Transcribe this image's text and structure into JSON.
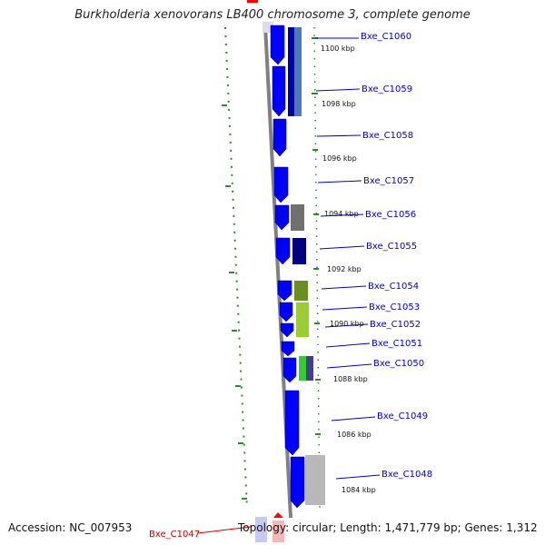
{
  "header": {
    "title": "Burkholderia xenovorans LB400 chromosome 3, complete genome"
  },
  "footer": {
    "accession": "Accession: NC_007953",
    "topology": "Topology: circular; Length: 1,471,779 bp; Genes: 1,312"
  },
  "highlight_gene": "Bxe_C1047",
  "colors": {
    "backbone": "#808080",
    "forward_strand": "#0000ff",
    "reverse_strand": "#0000aa",
    "tick": "#2e8b2e",
    "label": "#0000cc",
    "highlight": "#cc0000"
  },
  "kbp_ticks": [
    "1100 kbp",
    "1098 kbp",
    "1096 kbp",
    "1094 kbp",
    "1092 kbp",
    "1090 kbp",
    "1088 kbp",
    "1086 kbp",
    "1084 kbp"
  ],
  "genes": [
    "Bxe_C1060",
    "Bxe_C1059",
    "Bxe_C1058",
    "Bxe_C1057",
    "Bxe_C1056",
    "Bxe_C1055",
    "Bxe_C1054",
    "Bxe_C1053",
    "Bxe_C1052",
    "Bxe_C1051",
    "Bxe_C1050",
    "Bxe_C1049",
    "Bxe_C1048"
  ]
}
